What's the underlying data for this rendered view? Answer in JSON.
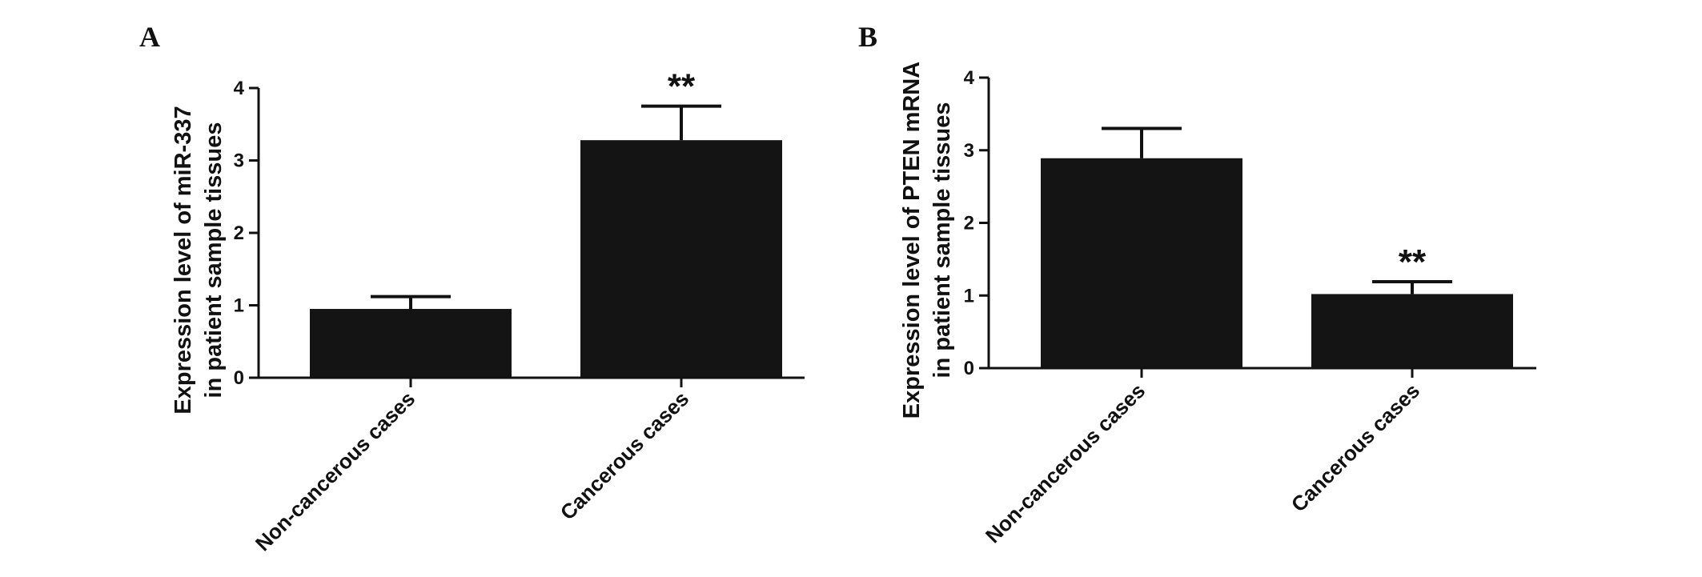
{
  "chart_data": [
    {
      "type": "bar",
      "panel": "A",
      "categories": [
        "Non-cancerous cases",
        "Cancerous cases"
      ],
      "values": [
        0.95,
        3.28
      ],
      "errors": [
        0.17,
        0.47
      ],
      "significance": [
        "",
        "**"
      ],
      "ylabel_lines": [
        "Expression level of miR-337",
        "in patient sample tissues"
      ],
      "ylim": [
        0,
        4
      ],
      "yticks": [
        "0",
        "1",
        "2",
        "3",
        "4"
      ],
      "grid": false,
      "bar_color": "#141414"
    },
    {
      "type": "bar",
      "panel": "B",
      "categories": [
        "Non-cancerous cases",
        "Cancerous cases"
      ],
      "values": [
        2.89,
        1.02
      ],
      "errors": [
        0.41,
        0.17
      ],
      "significance": [
        "",
        "**"
      ],
      "ylabel_lines": [
        "Expression level of PTEN mRNA",
        "in patient sample tissues"
      ],
      "ylim": [
        0,
        4
      ],
      "yticks": [
        "0",
        "1",
        "2",
        "3",
        "4"
      ],
      "grid": false,
      "bar_color": "#141414"
    }
  ]
}
